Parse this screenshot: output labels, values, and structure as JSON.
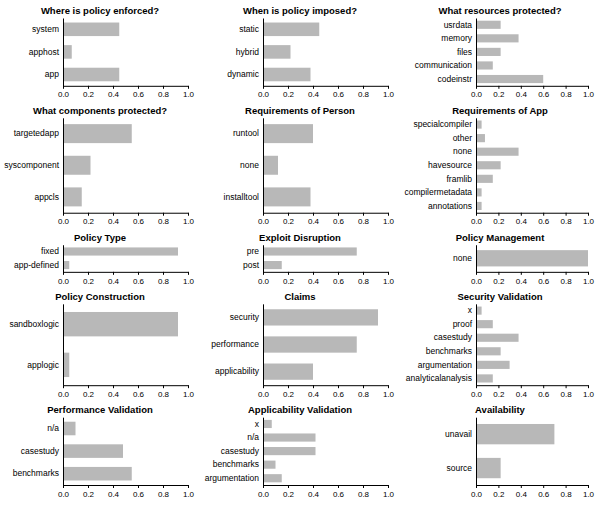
{
  "chart_data": [
    {
      "type": "bar",
      "orientation": "horizontal",
      "grid": false,
      "color": "#b8b8b8",
      "title": "Where is policy enforced?",
      "categories": [
        "system",
        "apphost",
        "app"
      ],
      "values": [
        0.45,
        0.07,
        0.45
      ],
      "xlim": [
        0,
        1.0
      ],
      "xticks": [
        {
          "value": 0.0,
          "label": "0.0"
        },
        {
          "value": 0.2,
          "label": "0.2"
        },
        {
          "value": 0.4,
          "label": "0.4"
        },
        {
          "value": 0.6,
          "label": "0.6"
        },
        {
          "value": 0.8,
          "label": "0.8"
        },
        {
          "value": 1.0,
          "label": "1.0"
        }
      ]
    },
    {
      "type": "bar",
      "orientation": "horizontal",
      "grid": false,
      "color": "#b8b8b8",
      "title": "When is policy imposed?",
      "categories": [
        "static",
        "hybrid",
        "dynamic"
      ],
      "values": [
        0.45,
        0.22,
        0.38
      ],
      "xlim": [
        0,
        1.0
      ],
      "xticks": [
        {
          "value": 0.0,
          "label": "0.0"
        },
        {
          "value": 0.2,
          "label": "0.2"
        },
        {
          "value": 0.4,
          "label": "0.4"
        },
        {
          "value": 0.6,
          "label": "0.6"
        },
        {
          "value": 0.8,
          "label": "0.8"
        },
        {
          "value": 1.0,
          "label": "1.0"
        }
      ]
    },
    {
      "type": "bar",
      "orientation": "horizontal",
      "grid": false,
      "color": "#b8b8b8",
      "title": "What resources protected?",
      "categories": [
        "usrdata",
        "memory",
        "files",
        "communication",
        "codeinstr"
      ],
      "values": [
        0.22,
        0.38,
        0.22,
        0.15,
        0.6
      ],
      "xlim": [
        0,
        1.0
      ],
      "xticks": [
        {
          "value": 0.0,
          "label": "0.0"
        },
        {
          "value": 0.2,
          "label": "0.2"
        },
        {
          "value": 0.4,
          "label": "0.4"
        },
        {
          "value": 0.6,
          "label": "0.6"
        },
        {
          "value": 0.8,
          "label": "0.8"
        },
        {
          "value": 1.0,
          "label": "1.0"
        }
      ]
    },
    {
      "type": "bar",
      "orientation": "horizontal",
      "grid": false,
      "color": "#b8b8b8",
      "title": "What components protected?",
      "categories": [
        "targetedapp",
        "syscomponent",
        "appcls"
      ],
      "values": [
        0.55,
        0.22,
        0.15
      ],
      "xlim": [
        0,
        1.0
      ],
      "xticks": [
        {
          "value": 0.0,
          "label": "0.0"
        },
        {
          "value": 0.2,
          "label": "0.2"
        },
        {
          "value": 0.4,
          "label": "0.4"
        },
        {
          "value": 0.6,
          "label": "0.6"
        },
        {
          "value": 0.8,
          "label": "0.8"
        },
        {
          "value": 1.0,
          "label": "1.0"
        }
      ]
    },
    {
      "type": "bar",
      "orientation": "horizontal",
      "grid": false,
      "color": "#b8b8b8",
      "title": "Requirements of Person",
      "categories": [
        "runtool",
        "none",
        "installtool"
      ],
      "values": [
        0.4,
        0.12,
        0.38
      ],
      "xlim": [
        0,
        1.0
      ],
      "xticks": [
        {
          "value": 0.0,
          "label": "0.0"
        },
        {
          "value": 0.2,
          "label": "0.2"
        },
        {
          "value": 0.4,
          "label": "0.4"
        },
        {
          "value": 0.6,
          "label": "0.6"
        },
        {
          "value": 0.8,
          "label": "0.8"
        },
        {
          "value": 1.0,
          "label": "1.0"
        }
      ]
    },
    {
      "type": "bar",
      "orientation": "horizontal",
      "grid": false,
      "color": "#b8b8b8",
      "title": "Requirements of App",
      "categories": [
        "specialcompiler",
        "other",
        "none",
        "havesource",
        "framlib",
        "compilermetadata",
        "annotations"
      ],
      "values": [
        0.05,
        0.08,
        0.38,
        0.22,
        0.15,
        0.05,
        0.05
      ],
      "xlim": [
        0,
        1.0
      ],
      "xticks": [
        {
          "value": 0.0,
          "label": "0.0"
        },
        {
          "value": 0.2,
          "label": "0.2"
        },
        {
          "value": 0.4,
          "label": "0.4"
        },
        {
          "value": 0.6,
          "label": "0.6"
        },
        {
          "value": 0.8,
          "label": "0.8"
        },
        {
          "value": 1.0,
          "label": "1.0"
        }
      ]
    },
    {
      "type": "bar",
      "orientation": "horizontal",
      "grid": false,
      "color": "#b8b8b8",
      "title": "Policy Type",
      "categories": [
        "fixed",
        "app-defined"
      ],
      "values": [
        0.92,
        0.05
      ],
      "xlim": [
        0,
        1.0
      ],
      "xticks": [
        {
          "value": 0.0,
          "label": "0.0"
        },
        {
          "value": 0.2,
          "label": "0.2"
        },
        {
          "value": 0.4,
          "label": "0.4"
        },
        {
          "value": 0.6,
          "label": "0.6"
        },
        {
          "value": 0.8,
          "label": "0.8"
        },
        {
          "value": 1.0,
          "label": "1.0"
        }
      ]
    },
    {
      "type": "bar",
      "orientation": "horizontal",
      "grid": false,
      "color": "#b8b8b8",
      "title": "Exploit Disruption",
      "categories": [
        "pre",
        "post"
      ],
      "values": [
        0.75,
        0.15
      ],
      "xlim": [
        0,
        1.0
      ],
      "xticks": [
        {
          "value": 0.0,
          "label": "0.0"
        },
        {
          "value": 0.2,
          "label": "0.2"
        },
        {
          "value": 0.4,
          "label": "0.4"
        },
        {
          "value": 0.6,
          "label": "0.6"
        },
        {
          "value": 0.8,
          "label": "0.8"
        },
        {
          "value": 1.0,
          "label": "1.0"
        }
      ]
    },
    {
      "type": "bar",
      "orientation": "horizontal",
      "grid": false,
      "color": "#b8b8b8",
      "title": "Policy Management",
      "categories": [
        "none"
      ],
      "values": [
        1.0
      ],
      "xlim": [
        0,
        1.0
      ],
      "xticks": [
        {
          "value": 0.0,
          "label": "0.0"
        },
        {
          "value": 0.2,
          "label": "0.2"
        },
        {
          "value": 0.4,
          "label": "0.4"
        },
        {
          "value": 0.6,
          "label": "0.6"
        },
        {
          "value": 0.8,
          "label": "0.8"
        },
        {
          "value": 1.0,
          "label": "1.0"
        }
      ]
    },
    {
      "type": "bar",
      "orientation": "horizontal",
      "grid": false,
      "color": "#b8b8b8",
      "title": "Policy Construction",
      "categories": [
        "sandboxlogic",
        "applogic"
      ],
      "values": [
        0.92,
        0.05
      ],
      "xlim": [
        0,
        1.0
      ],
      "xticks": [
        {
          "value": 0.0,
          "label": "0.0"
        },
        {
          "value": 0.2,
          "label": "0.2"
        },
        {
          "value": 0.4,
          "label": "0.4"
        },
        {
          "value": 0.6,
          "label": "0.6"
        },
        {
          "value": 0.8,
          "label": "0.8"
        },
        {
          "value": 1.0,
          "label": "1.0"
        }
      ]
    },
    {
      "type": "bar",
      "orientation": "horizontal",
      "grid": false,
      "color": "#b8b8b8",
      "title": "Claims",
      "categories": [
        "security",
        "performance",
        "applicability"
      ],
      "values": [
        0.92,
        0.75,
        0.4
      ],
      "xlim": [
        0,
        1.0
      ],
      "xticks": [
        {
          "value": 0.0,
          "label": "0.0"
        },
        {
          "value": 0.2,
          "label": "0.2"
        },
        {
          "value": 0.4,
          "label": "0.4"
        },
        {
          "value": 0.6,
          "label": "0.6"
        },
        {
          "value": 0.8,
          "label": "0.8"
        },
        {
          "value": 1.0,
          "label": "1.0"
        }
      ]
    },
    {
      "type": "bar",
      "orientation": "horizontal",
      "grid": false,
      "color": "#b8b8b8",
      "title": "Security Validation",
      "categories": [
        "x",
        "proof",
        "casestudy",
        "benchmarks",
        "argumentation",
        "analyticalanalysis"
      ],
      "values": [
        0.05,
        0.15,
        0.38,
        0.22,
        0.3,
        0.15
      ],
      "xlim": [
        0,
        1.0
      ],
      "xticks": [
        {
          "value": 0.0,
          "label": "0.0"
        },
        {
          "value": 0.2,
          "label": "0.2"
        },
        {
          "value": 0.4,
          "label": "0.4"
        },
        {
          "value": 0.6,
          "label": "0.6"
        },
        {
          "value": 0.8,
          "label": "0.8"
        },
        {
          "value": 1.0,
          "label": "1.0"
        }
      ]
    },
    {
      "type": "bar",
      "orientation": "horizontal",
      "grid": false,
      "color": "#b8b8b8",
      "title": "Performance Validation",
      "categories": [
        "n/a",
        "casestudy",
        "benchmarks"
      ],
      "values": [
        0.1,
        0.48,
        0.55
      ],
      "xlim": [
        0,
        1.0
      ],
      "xticks": [
        {
          "value": 0.0,
          "label": "0.0"
        },
        {
          "value": 0.2,
          "label": "0.2"
        },
        {
          "value": 0.4,
          "label": "0.4"
        },
        {
          "value": 0.6,
          "label": "0.6"
        },
        {
          "value": 0.8,
          "label": "0.8"
        },
        {
          "value": 1.0,
          "label": "1.0"
        }
      ]
    },
    {
      "type": "bar",
      "orientation": "horizontal",
      "grid": false,
      "color": "#b8b8b8",
      "title": "Applicability Validation",
      "categories": [
        "x",
        "n/a",
        "casestudy",
        "benchmarks",
        "argumentation"
      ],
      "values": [
        0.07,
        0.42,
        0.42,
        0.1,
        0.15
      ],
      "xlim": [
        0,
        1.0
      ],
      "xticks": [
        {
          "value": 0.0,
          "label": "0.0"
        },
        {
          "value": 0.2,
          "label": "0.2"
        },
        {
          "value": 0.4,
          "label": "0.4"
        },
        {
          "value": 0.6,
          "label": "0.6"
        },
        {
          "value": 0.8,
          "label": "0.8"
        },
        {
          "value": 1.0,
          "label": "1.0"
        }
      ]
    },
    {
      "type": "bar",
      "orientation": "horizontal",
      "grid": false,
      "color": "#b8b8b8",
      "title": "Availability",
      "categories": [
        "unavail",
        "source"
      ],
      "values": [
        0.7,
        0.22
      ],
      "xlim": [
        0,
        1.0
      ],
      "xticks": [
        {
          "value": 0.0,
          "label": "0.0"
        },
        {
          "value": 0.2,
          "label": "0.2"
        },
        {
          "value": 0.4,
          "label": "0.4"
        },
        {
          "value": 0.6,
          "label": "0.6"
        },
        {
          "value": 0.8,
          "label": "0.8"
        },
        {
          "value": 1.0,
          "label": "1.0"
        }
      ]
    }
  ]
}
